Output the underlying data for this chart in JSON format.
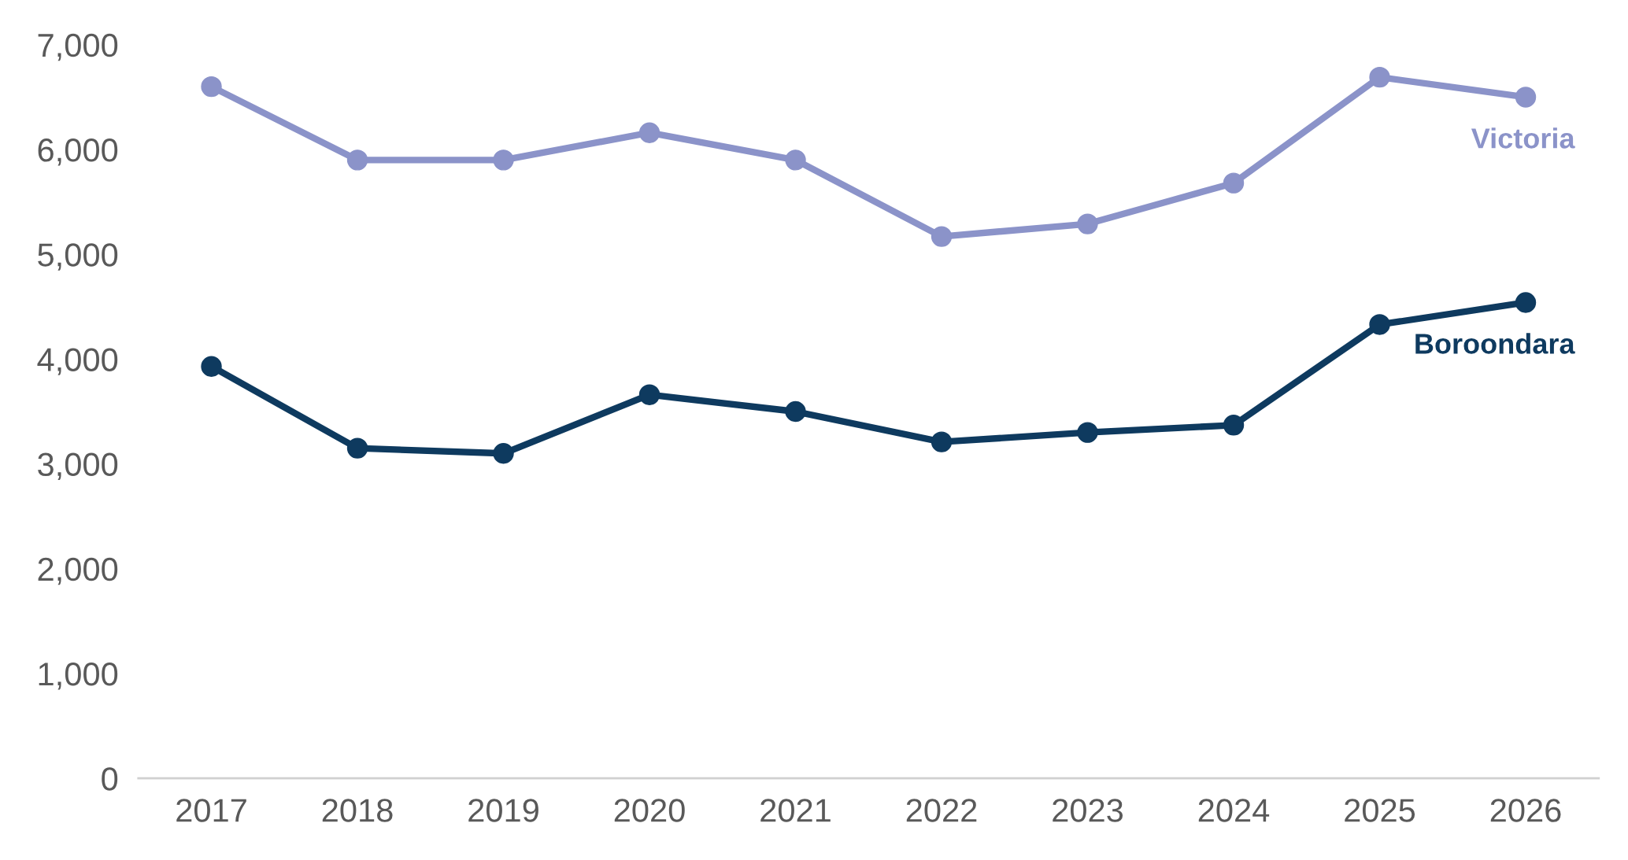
{
  "chart_data": {
    "type": "line",
    "categories": [
      "2017",
      "2018",
      "2019",
      "2020",
      "2021",
      "2022",
      "2023",
      "2024",
      "2025",
      "2026"
    ],
    "series": [
      {
        "name": "Victoria",
        "color": "#8b93c9",
        "values": [
          6600,
          5900,
          5900,
          6160,
          5900,
          5170,
          5290,
          5680,
          6690,
          6500
        ]
      },
      {
        "name": "Boroondara",
        "color": "#0e3a5f",
        "values": [
          3930,
          3150,
          3100,
          3660,
          3500,
          3210,
          3300,
          3370,
          4330,
          4540
        ]
      }
    ],
    "ylim": [
      0,
      7000
    ],
    "yticks": [
      0,
      {
        "value": 1000,
        "label": "1,000"
      },
      {
        "value": 2000,
        "label": "2,000"
      },
      {
        "value": 3000,
        "label": "3,000"
      },
      {
        "value": 4000,
        "label": "4,000"
      },
      {
        "value": 5000,
        "label": "5,000"
      },
      {
        "value": 6000,
        "label": "6,000"
      },
      {
        "value": 7000,
        "label": "7,000"
      }
    ],
    "grid": false,
    "legend": false,
    "marker": "circle",
    "line_style": "solid"
  }
}
